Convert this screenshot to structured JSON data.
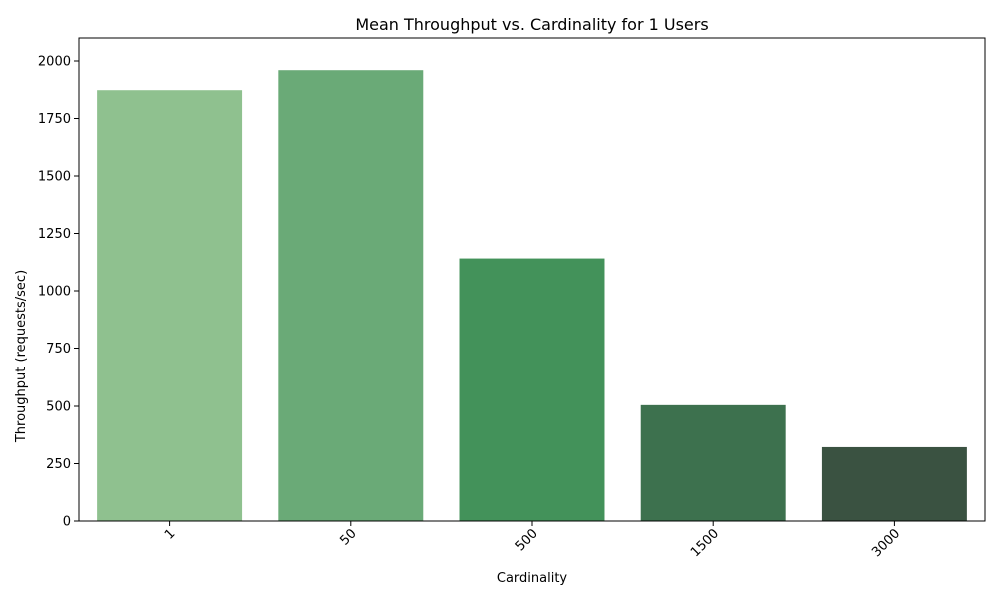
{
  "chart_data": {
    "type": "bar",
    "title": "Mean Throughput vs. Cardinality for 1 Users",
    "xlabel": "Cardinality",
    "ylabel": "Throughput (requests/sec)",
    "categories": [
      "1",
      "50",
      "500",
      "1500",
      "3000"
    ],
    "values": [
      1873,
      1960,
      1141,
      505,
      322
    ],
    "ylim": [
      0,
      2100
    ],
    "yticks": [
      0,
      250,
      500,
      750,
      1000,
      1250,
      1500,
      1750,
      2000
    ],
    "colors": [
      "#8fc18f",
      "#6aaa77",
      "#43925a",
      "#3d714e",
      "#3a5241"
    ],
    "grid": false,
    "legend": "none"
  }
}
